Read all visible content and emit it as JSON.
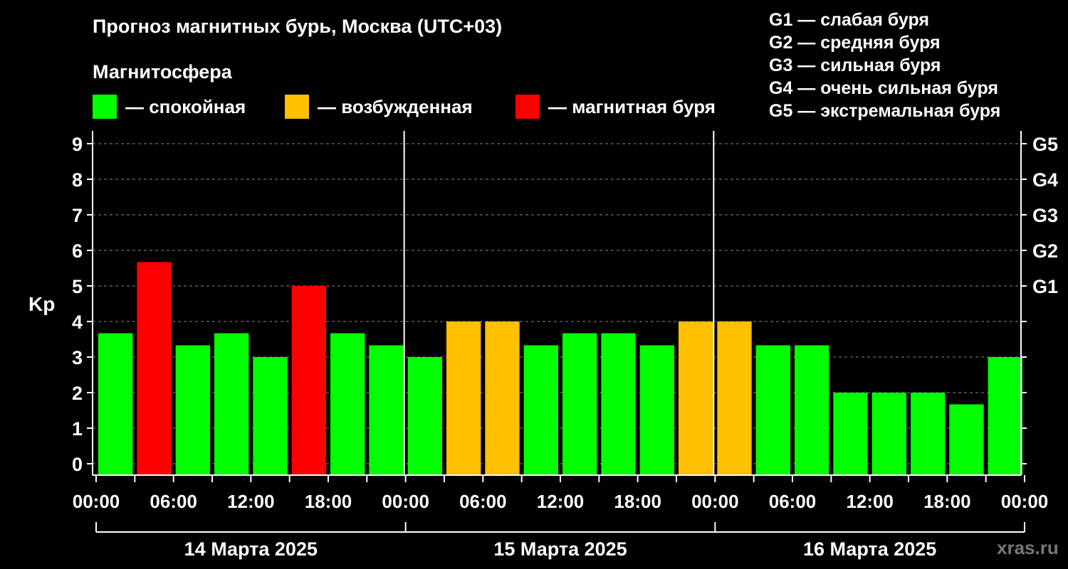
{
  "title": "Прогноз магнитных бурь, Москва (UTC+03)",
  "magnetosphere_label": "Магнитосфера",
  "legend": [
    {
      "color": "#00ff00",
      "label": "— спокойная"
    },
    {
      "color": "#ffc000",
      "label": "— возбужденная"
    },
    {
      "color": "#ff0000",
      "label": "— магнитная буря"
    }
  ],
  "g_scale": [
    "G1 — слабая буря",
    "G2 — средняя буря",
    "G3 — сильная буря",
    "G4 — очень сильная буря",
    "G5 — экстремальная буря"
  ],
  "watermark": "xras.ru",
  "chart_data": {
    "type": "bar",
    "ylabel": "Kp",
    "ylim": [
      0,
      9
    ],
    "y_ticks": [
      "0",
      "1",
      "2",
      "3",
      "4",
      "5",
      "6",
      "7",
      "8",
      "9"
    ],
    "right_ticks": [
      {
        "kp": 5,
        "label": "G1"
      },
      {
        "kp": 6,
        "label": "G2"
      },
      {
        "kp": 7,
        "label": "G3"
      },
      {
        "kp": 8,
        "label": "G4"
      },
      {
        "kp": 9,
        "label": "G5"
      }
    ],
    "x_tick_labels": [
      "00:00",
      "06:00",
      "12:00",
      "18:00",
      "00:00",
      "06:00",
      "12:00",
      "18:00",
      "00:00",
      "06:00",
      "12:00",
      "18:00",
      "00:00"
    ],
    "days": [
      "14 Марта 2025",
      "15 Марта 2025",
      "16 Марта 2025"
    ],
    "interval_hours": 3,
    "grid": "dashed horizontal",
    "values": [
      3.67,
      5.67,
      3.33,
      3.67,
      3.0,
      5.0,
      3.67,
      3.33,
      3.0,
      4.0,
      4.0,
      3.33,
      3.67,
      3.67,
      3.33,
      4.0,
      4.0,
      3.33,
      3.33,
      2.0,
      2.0,
      2.0,
      1.67,
      3.0
    ],
    "status": [
      "quiet",
      "storm",
      "quiet",
      "quiet",
      "quiet",
      "storm",
      "quiet",
      "quiet",
      "quiet",
      "active",
      "active",
      "quiet",
      "quiet",
      "quiet",
      "quiet",
      "active",
      "active",
      "quiet",
      "quiet",
      "quiet",
      "quiet",
      "quiet",
      "quiet",
      "quiet"
    ],
    "status_colors": {
      "quiet": "#00ff00",
      "active": "#ffc000",
      "storm": "#ff0000"
    }
  }
}
